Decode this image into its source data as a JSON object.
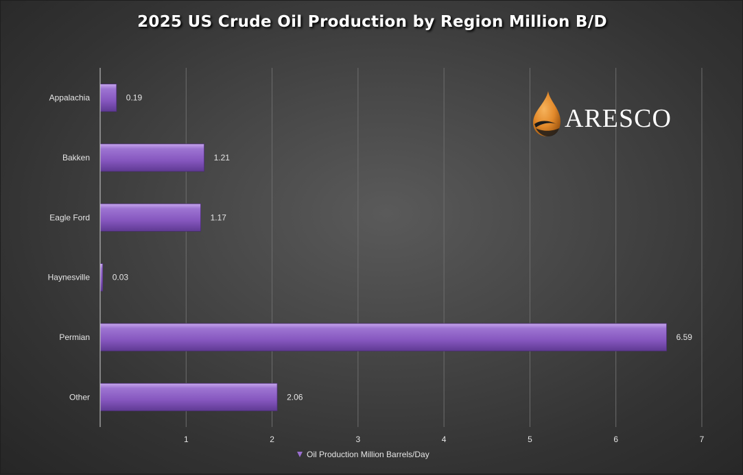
{
  "chart_data": {
    "type": "bar",
    "orientation": "horizontal",
    "title": "2025 US Crude Oil Production by Region Million B/D",
    "categories": [
      "Appalachia",
      "Bakken",
      "Eagle Ford",
      "Haynesville",
      "Permian",
      "Other"
    ],
    "series": [
      {
        "name": "Oil Production Million Barrels/Day",
        "values": [
          0.19,
          1.21,
          1.17,
          0.03,
          6.59,
          2.06
        ]
      }
    ],
    "value_labels": [
      "0.19",
      "1.21",
      "1.17",
      "0.03",
      "6.59",
      "2.06"
    ],
    "xlim": [
      0,
      7
    ],
    "x_ticks": [
      1,
      2,
      3,
      4,
      5,
      6,
      7
    ],
    "xlabel": "",
    "ylabel": "",
    "grid": true,
    "legend_position": "bottom",
    "bar_color": "#8b5fc0",
    "background_color": "#474747"
  },
  "logo": {
    "text": "ARESCO"
  }
}
